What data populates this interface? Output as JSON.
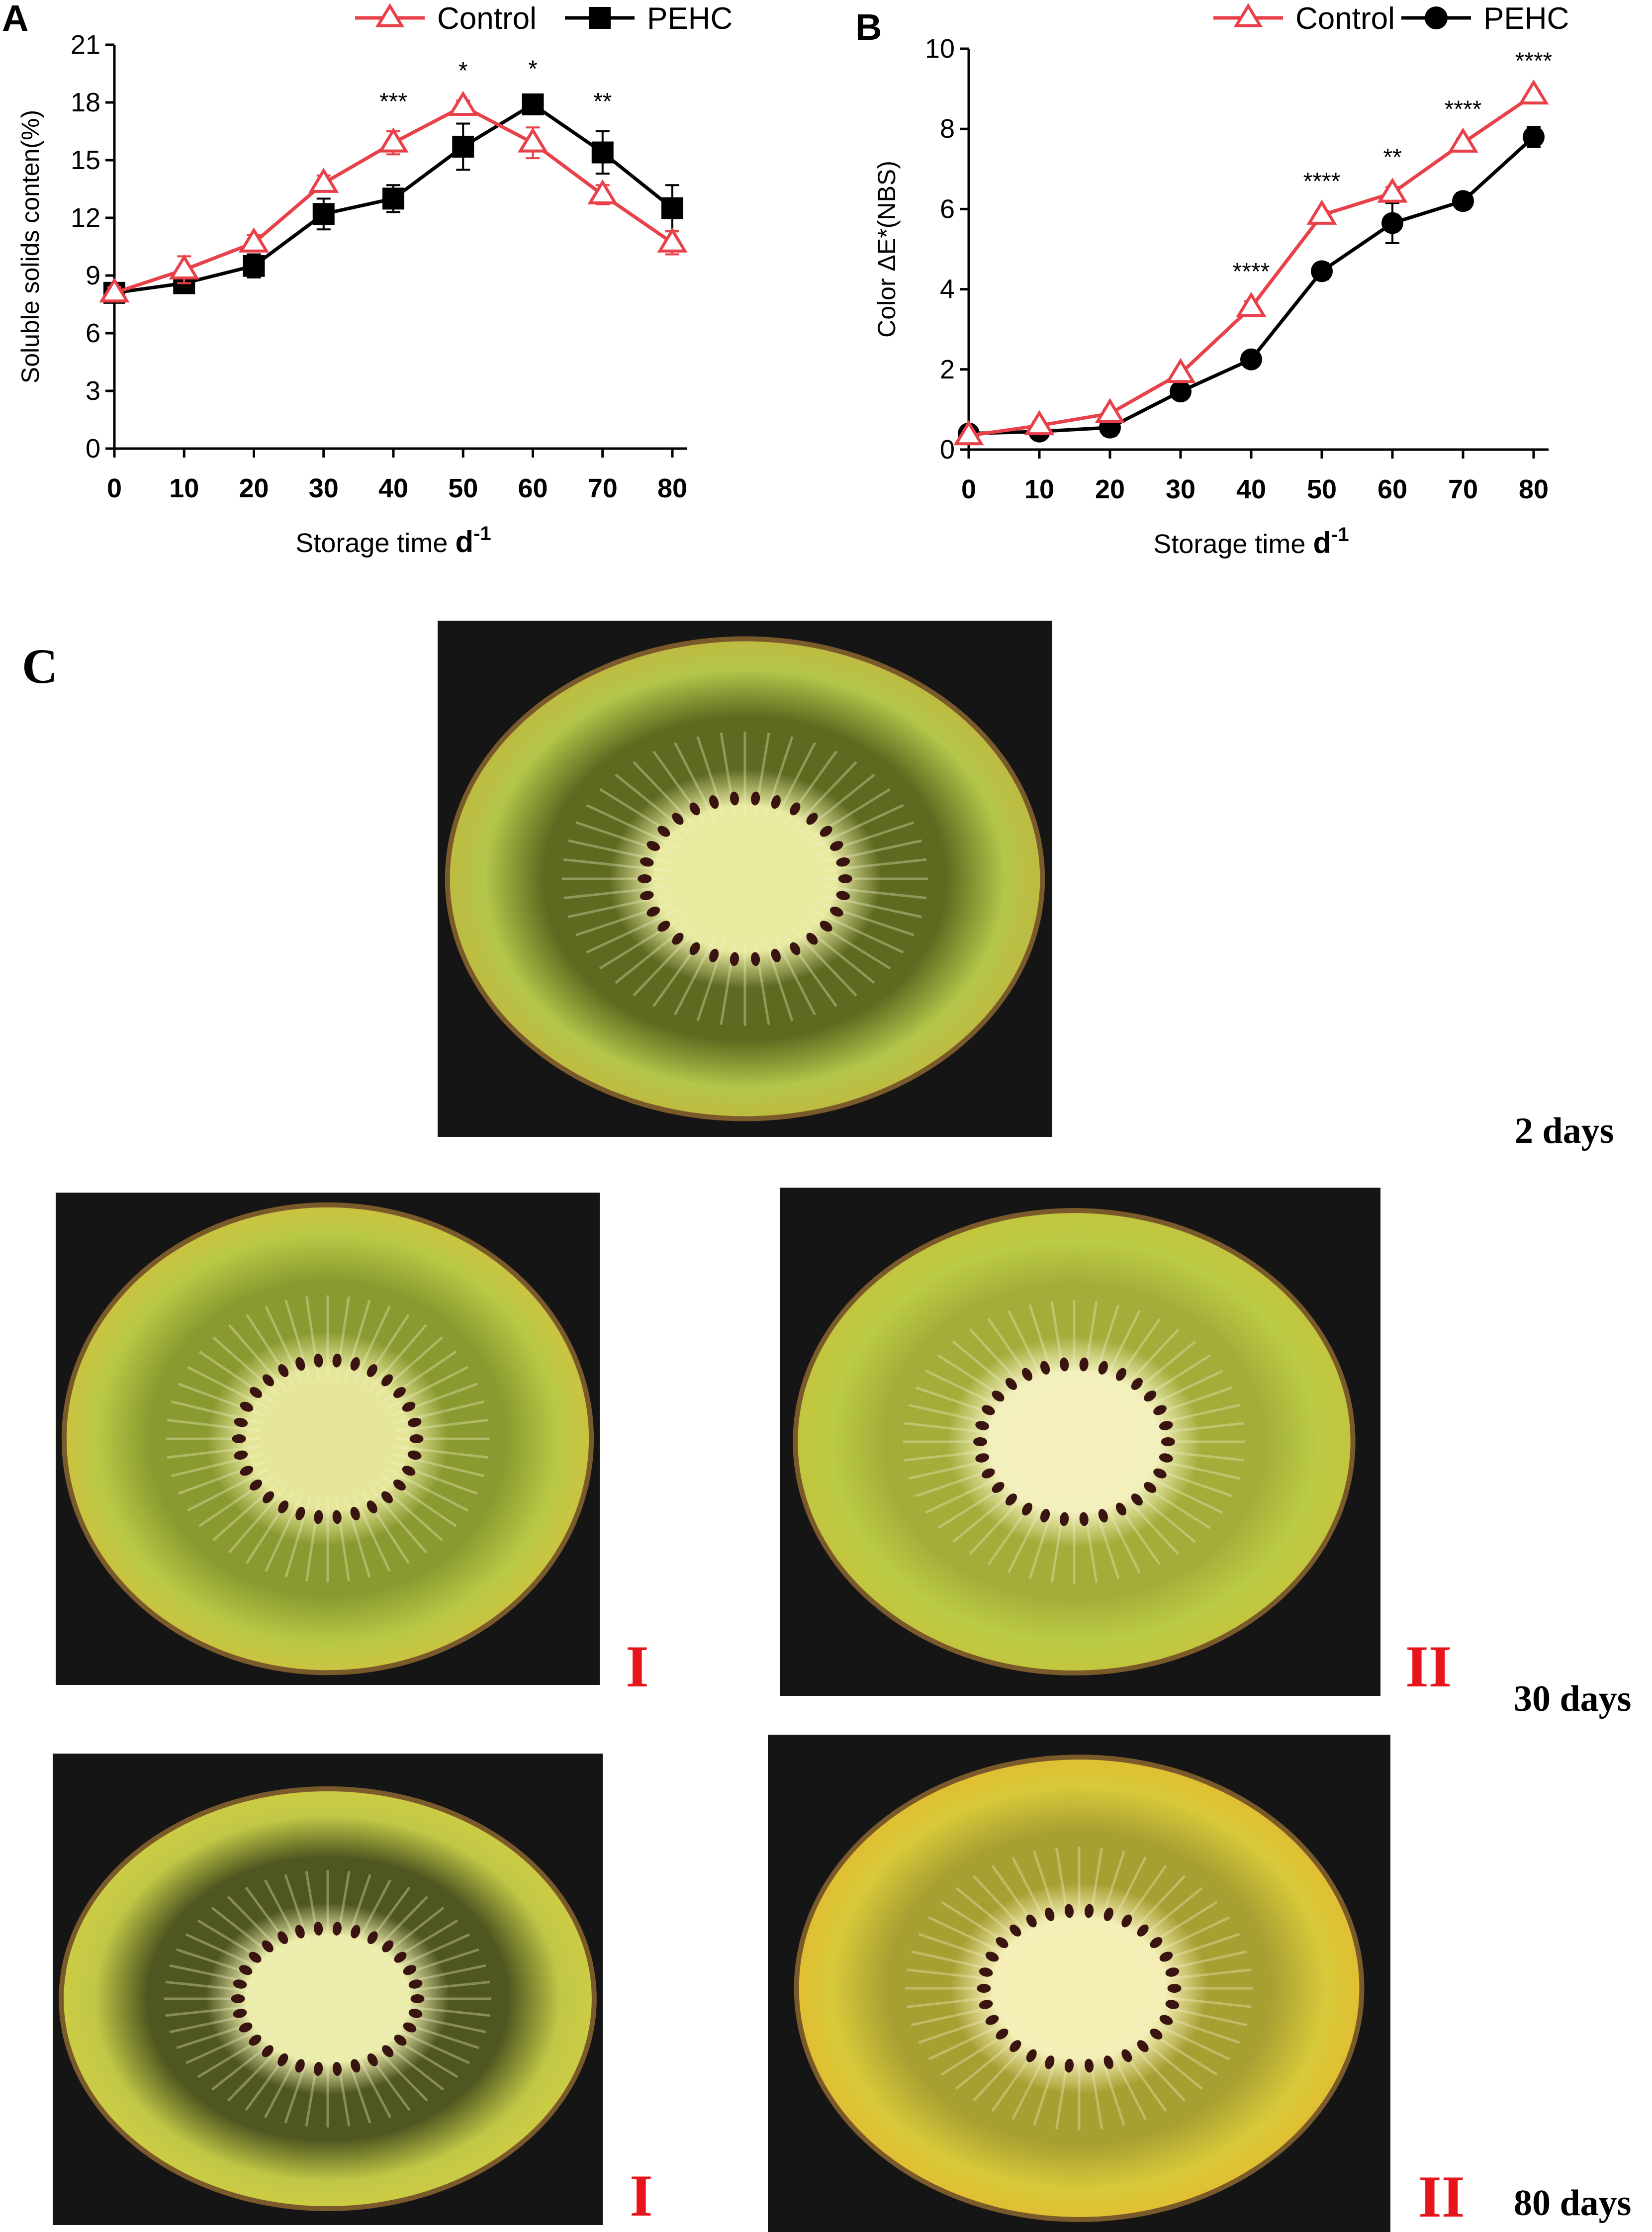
{
  "panels": {
    "a_letter": "A",
    "b_letter": "B",
    "c_letter": "C"
  },
  "colors": {
    "control": "#e8414a",
    "pehc": "#000000",
    "roman": "#e8141b"
  },
  "chart_data": [
    {
      "type": "line",
      "panel": "A",
      "title": "",
      "xlabel": "Storage time",
      "xlabel_unit": "d",
      "xlabel_unit_sup": "-1",
      "ylabel": "Soluble solids conten(%)",
      "xlim": [
        0,
        80
      ],
      "ylim": [
        0,
        21
      ],
      "x": [
        0,
        10,
        20,
        30,
        40,
        50,
        60,
        70,
        80
      ],
      "x_tick_labels": [
        "0",
        "10",
        "20",
        "30",
        "40",
        "50",
        "60",
        "70",
        "80"
      ],
      "y_ticks": [
        0,
        3,
        6,
        9,
        12,
        15,
        18,
        21
      ],
      "y_tick_labels": [
        "0",
        "3",
        "6",
        "9",
        "12",
        "15",
        "18",
        "21"
      ],
      "legend_position": "top",
      "grid": false,
      "series": [
        {
          "name": "Control",
          "marker": "triangle-open",
          "values": [
            8.1,
            9.3,
            10.7,
            13.8,
            15.9,
            17.8,
            15.9,
            13.2,
            10.7
          ],
          "errors": [
            0.3,
            0.7,
            0.4,
            0.4,
            0.6,
            0.3,
            0.8,
            0.5,
            0.6
          ]
        },
        {
          "name": "PEHC",
          "marker": "square-filled",
          "values": [
            8.1,
            8.6,
            9.5,
            12.2,
            13.0,
            15.7,
            17.9,
            15.4,
            12.5
          ],
          "errors": [
            0.4,
            0.3,
            0.6,
            0.8,
            0.7,
            1.2,
            0.3,
            1.1,
            1.2
          ]
        }
      ],
      "annotations": [
        {
          "x": 40,
          "text": "***"
        },
        {
          "x": 50,
          "text": "*"
        },
        {
          "x": 60,
          "text": "*"
        },
        {
          "x": 70,
          "text": "**"
        }
      ]
    },
    {
      "type": "line",
      "panel": "B",
      "title": "",
      "xlabel": "Storage time",
      "xlabel_unit": "d",
      "xlabel_unit_sup": "-1",
      "ylabel": "Color  ΔE*(NBS)",
      "xlim": [
        0,
        80
      ],
      "ylim": [
        0,
        10
      ],
      "x": [
        0,
        10,
        20,
        30,
        40,
        50,
        60,
        70,
        80
      ],
      "x_tick_labels": [
        "0",
        "10",
        "20",
        "30",
        "40",
        "50",
        "60",
        "70",
        "80"
      ],
      "y_ticks": [
        0,
        2,
        4,
        6,
        8,
        10
      ],
      "y_tick_labels": [
        "0",
        "2",
        "4",
        "6",
        "8",
        "10"
      ],
      "legend_position": "top",
      "grid": false,
      "series": [
        {
          "name": "Control",
          "marker": "triangle-open",
          "values": [
            0.35,
            0.6,
            0.9,
            1.9,
            3.55,
            5.85,
            6.4,
            7.65,
            8.85
          ],
          "errors": [
            0.05,
            0.1,
            0.1,
            0.1,
            0.15,
            0.1,
            0.15,
            0.1,
            0.1
          ]
        },
        {
          "name": "PEHC",
          "marker": "circle-filled",
          "values": [
            0.4,
            0.45,
            0.55,
            1.45,
            2.25,
            4.45,
            5.65,
            6.2,
            7.8
          ],
          "errors": [
            0.05,
            0.05,
            0.2,
            0.15,
            0.05,
            0.2,
            0.5,
            0.2,
            0.25
          ]
        }
      ],
      "annotations": [
        {
          "x": 40,
          "text": "****"
        },
        {
          "x": 50,
          "text": "****"
        },
        {
          "x": 60,
          "text": "**"
        },
        {
          "x": 70,
          "text": "****"
        },
        {
          "x": 80,
          "text": "****"
        }
      ]
    }
  ],
  "photo_panel": {
    "label_2_days": "2 days",
    "label_30_days": "30 days",
    "label_80_days": "80 days",
    "group_i": "I",
    "group_ii": "II",
    "photos": [
      {
        "icon": "kiwi-slice-photo",
        "day": "2 days"
      },
      {
        "icon": "kiwi-slice-photo",
        "day": "30 days",
        "group": "I"
      },
      {
        "icon": "kiwi-slice-photo",
        "day": "30 days",
        "group": "II"
      },
      {
        "icon": "kiwi-slice-photo",
        "day": "80 days",
        "group": "I"
      },
      {
        "icon": "kiwi-slice-photo",
        "day": "80 days",
        "group": "II"
      }
    ]
  }
}
